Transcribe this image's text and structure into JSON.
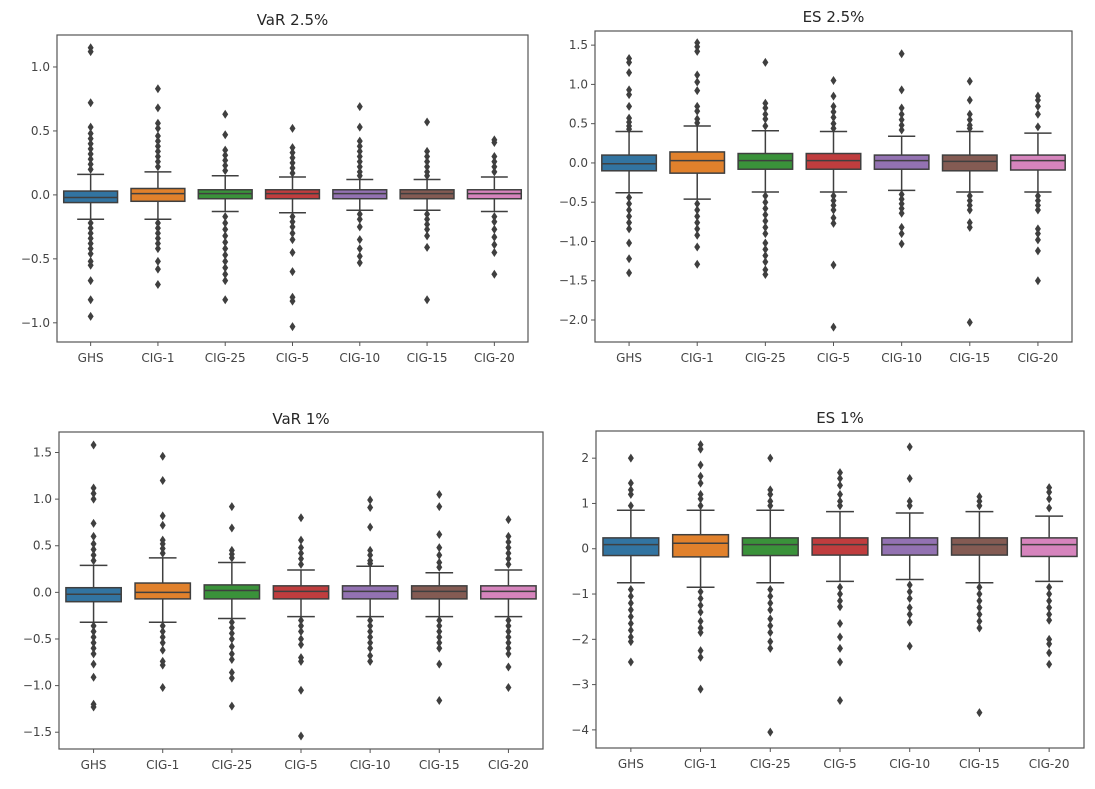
{
  "chart_data": [
    {
      "type": "box",
      "title": "VaR 2.5%",
      "xlabel": "",
      "ylabel": "",
      "categories": [
        "GHS",
        "CIG-1",
        "CIG-25",
        "CIG-5",
        "CIG-10",
        "CIG-15",
        "CIG-20"
      ],
      "colors": [
        "#3274a1",
        "#e1812c",
        "#3a923a",
        "#c03d3e",
        "#9372b2",
        "#845b53",
        "#d684bd"
      ],
      "ylim": [
        -1.15,
        1.25
      ],
      "yticks": [
        -1.0,
        -0.5,
        0.0,
        0.5,
        1.0
      ],
      "ytick_labels": [
        "−1.0",
        "−0.5",
        "0.0",
        "0.5",
        "1.0"
      ],
      "boxes": [
        {
          "q1": -0.06,
          "median": -0.02,
          "q3": 0.03,
          "whislo": -0.19,
          "whishi": 0.16,
          "fliers": [
            1.15,
            1.12,
            0.72,
            0.53,
            0.48,
            0.44,
            0.4,
            0.36,
            0.32,
            0.28,
            0.24,
            0.2,
            -0.22,
            -0.26,
            -0.3,
            -0.34,
            -0.38,
            -0.42,
            -0.46,
            -0.52,
            -0.55,
            -0.67,
            -0.82,
            -0.95
          ]
        },
        {
          "q1": -0.05,
          "median": 0.01,
          "q3": 0.05,
          "whislo": -0.19,
          "whishi": 0.18,
          "fliers": [
            0.83,
            0.68,
            0.56,
            0.52,
            0.46,
            0.42,
            0.38,
            0.34,
            0.3,
            0.26,
            0.22,
            -0.22,
            -0.26,
            -0.3,
            -0.34,
            -0.38,
            -0.42,
            -0.52,
            -0.58,
            -0.7
          ]
        },
        {
          "q1": -0.03,
          "median": 0.01,
          "q3": 0.04,
          "whislo": -0.13,
          "whishi": 0.15,
          "fliers": [
            0.63,
            0.47,
            0.35,
            0.31,
            0.27,
            0.23,
            0.19,
            -0.17,
            -0.22,
            -0.27,
            -0.32,
            -0.37,
            -0.42,
            -0.47,
            -0.52,
            -0.57,
            -0.62,
            -0.67,
            -0.82
          ]
        },
        {
          "q1": -0.03,
          "median": 0.01,
          "q3": 0.04,
          "whislo": -0.14,
          "whishi": 0.14,
          "fliers": [
            0.52,
            0.37,
            0.33,
            0.29,
            0.25,
            0.21,
            0.17,
            -0.17,
            -0.21,
            -0.25,
            -0.3,
            -0.35,
            -0.45,
            -0.6,
            -0.8,
            -0.83,
            -1.03
          ]
        },
        {
          "q1": -0.03,
          "median": 0.01,
          "q3": 0.04,
          "whislo": -0.12,
          "whishi": 0.12,
          "fliers": [
            0.69,
            0.53,
            0.42,
            0.38,
            0.34,
            0.3,
            0.26,
            0.22,
            0.18,
            0.15,
            -0.15,
            -0.19,
            -0.25,
            -0.35,
            -0.42,
            -0.48,
            -0.53
          ]
        },
        {
          "q1": -0.03,
          "median": 0.01,
          "q3": 0.04,
          "whislo": -0.12,
          "whishi": 0.12,
          "fliers": [
            0.57,
            0.34,
            0.3,
            0.26,
            0.22,
            0.18,
            0.15,
            -0.15,
            -0.19,
            -0.23,
            -0.27,
            -0.32,
            -0.41,
            -0.82
          ]
        },
        {
          "q1": -0.03,
          "median": 0.01,
          "q3": 0.04,
          "whislo": -0.13,
          "whishi": 0.14,
          "fliers": [
            0.43,
            0.41,
            0.3,
            0.26,
            0.22,
            0.18,
            -0.17,
            -0.21,
            -0.27,
            -0.33,
            -0.39,
            -0.45,
            -0.62
          ]
        }
      ]
    },
    {
      "type": "box",
      "title": "ES 2.5%",
      "xlabel": "",
      "ylabel": "",
      "categories": [
        "GHS",
        "CIG-1",
        "CIG-25",
        "CIG-5",
        "CIG-10",
        "CIG-15",
        "CIG-20"
      ],
      "colors": [
        "#3274a1",
        "#e1812c",
        "#3a923a",
        "#c03d3e",
        "#9372b2",
        "#845b53",
        "#d684bd"
      ],
      "ylim": [
        -2.28,
        1.68
      ],
      "yticks": [
        -2.0,
        -1.5,
        -1.0,
        -0.5,
        0.0,
        0.5,
        1.0,
        1.5
      ],
      "ytick_labels": [
        "−2.0",
        "−1.5",
        "−1.0",
        "−0.5",
        "0.0",
        "0.5",
        "1.0",
        "1.5"
      ],
      "boxes": [
        {
          "q1": -0.1,
          "median": -0.01,
          "q3": 0.1,
          "whislo": -0.38,
          "whishi": 0.4,
          "fliers": [
            1.33,
            1.28,
            1.15,
            0.93,
            0.87,
            0.72,
            0.57,
            0.52,
            0.47,
            0.43,
            -0.44,
            -0.52,
            -0.6,
            -0.68,
            -0.76,
            -0.84,
            -1.02,
            -1.22,
            -1.4
          ]
        },
        {
          "q1": -0.13,
          "median": 0.03,
          "q3": 0.14,
          "whislo": -0.46,
          "whishi": 0.47,
          "fliers": [
            1.53,
            1.48,
            1.42,
            1.12,
            1.03,
            0.92,
            0.72,
            0.66,
            0.56,
            0.51,
            -0.52,
            -0.6,
            -0.68,
            -0.76,
            -0.84,
            -0.92,
            -1.07,
            -1.29
          ]
        },
        {
          "q1": -0.08,
          "median": 0.03,
          "q3": 0.12,
          "whislo": -0.37,
          "whishi": 0.41,
          "fliers": [
            1.28,
            0.76,
            0.7,
            0.62,
            0.56,
            0.47,
            -0.42,
            -0.5,
            -0.58,
            -0.66,
            -0.74,
            -0.82,
            -0.9,
            -1.02,
            -1.1,
            -1.18,
            -1.26,
            -1.36,
            -1.42
          ]
        },
        {
          "q1": -0.08,
          "median": 0.03,
          "q3": 0.12,
          "whislo": -0.37,
          "whishi": 0.4,
          "fliers": [
            1.05,
            0.85,
            0.72,
            0.65,
            0.58,
            0.5,
            0.44,
            -0.42,
            -0.48,
            -0.54,
            -0.6,
            -0.7,
            -0.77,
            -1.3,
            -2.09
          ]
        },
        {
          "q1": -0.08,
          "median": 0.03,
          "q3": 0.1,
          "whislo": -0.35,
          "whishi": 0.34,
          "fliers": [
            1.39,
            0.93,
            0.7,
            0.62,
            0.55,
            0.48,
            0.42,
            -0.4,
            -0.46,
            -0.52,
            -0.58,
            -0.64,
            -0.82,
            -0.9,
            -1.03
          ]
        },
        {
          "q1": -0.1,
          "median": 0.02,
          "q3": 0.1,
          "whislo": -0.37,
          "whishi": 0.4,
          "fliers": [
            1.04,
            0.8,
            0.62,
            0.55,
            0.48,
            0.44,
            -0.42,
            -0.48,
            -0.54,
            -0.6,
            -0.76,
            -0.82,
            -2.03
          ]
        },
        {
          "q1": -0.09,
          "median": 0.03,
          "q3": 0.1,
          "whislo": -0.37,
          "whishi": 0.38,
          "fliers": [
            0.85,
            0.8,
            0.72,
            0.62,
            0.46,
            -0.42,
            -0.48,
            -0.54,
            -0.6,
            -0.84,
            -0.9,
            -0.98,
            -1.12,
            -1.5
          ]
        }
      ]
    },
    {
      "type": "box",
      "title": "VaR 1%",
      "xlabel": "",
      "ylabel": "",
      "categories": [
        "GHS",
        "CIG-1",
        "CIG-25",
        "CIG-5",
        "CIG-10",
        "CIG-15",
        "CIG-20"
      ],
      "colors": [
        "#3274a1",
        "#e1812c",
        "#3a923a",
        "#c03d3e",
        "#9372b2",
        "#845b53",
        "#d684bd"
      ],
      "ylim": [
        -1.68,
        1.72
      ],
      "yticks": [
        -1.5,
        -1.0,
        -0.5,
        0.0,
        0.5,
        1.0,
        1.5
      ],
      "ytick_labels": [
        "−1.5",
        "−1.0",
        "−0.5",
        "0.0",
        "0.5",
        "1.0",
        "1.5"
      ],
      "boxes": [
        {
          "q1": -0.1,
          "median": -0.02,
          "q3": 0.05,
          "whislo": -0.32,
          "whishi": 0.29,
          "fliers": [
            1.58,
            1.12,
            1.06,
            1.0,
            0.74,
            0.6,
            0.52,
            0.46,
            0.4,
            0.34,
            -0.36,
            -0.42,
            -0.48,
            -0.54,
            -0.6,
            -0.66,
            -0.77,
            -0.91,
            -1.2,
            -1.23
          ]
        },
        {
          "q1": -0.07,
          "median": 0.0,
          "q3": 0.1,
          "whislo": -0.32,
          "whishi": 0.37,
          "fliers": [
            1.46,
            1.2,
            0.82,
            0.72,
            0.56,
            0.52,
            0.47,
            0.42,
            -0.36,
            -0.42,
            -0.48,
            -0.54,
            -0.62,
            -0.74,
            -0.78,
            -1.02
          ]
        },
        {
          "q1": -0.07,
          "median": 0.02,
          "q3": 0.08,
          "whislo": -0.28,
          "whishi": 0.32,
          "fliers": [
            0.92,
            0.69,
            0.45,
            0.41,
            0.37,
            -0.32,
            -0.38,
            -0.44,
            -0.5,
            -0.58,
            -0.66,
            -0.72,
            -0.86,
            -0.92,
            -1.22
          ]
        },
        {
          "q1": -0.07,
          "median": 0.01,
          "q3": 0.07,
          "whislo": -0.26,
          "whishi": 0.24,
          "fliers": [
            0.8,
            0.56,
            0.48,
            0.42,
            0.36,
            0.3,
            -0.3,
            -0.36,
            -0.42,
            -0.5,
            -0.56,
            -0.7,
            -0.74,
            -1.05,
            -1.54
          ]
        },
        {
          "q1": -0.07,
          "median": 0.01,
          "q3": 0.07,
          "whislo": -0.26,
          "whishi": 0.28,
          "fliers": [
            0.99,
            0.91,
            0.7,
            0.45,
            0.4,
            0.34,
            0.31,
            -0.3,
            -0.36,
            -0.42,
            -0.48,
            -0.54,
            -0.6,
            -0.68,
            -0.74
          ]
        },
        {
          "q1": -0.07,
          "median": 0.01,
          "q3": 0.07,
          "whislo": -0.26,
          "whishi": 0.21,
          "fliers": [
            1.05,
            0.92,
            0.62,
            0.48,
            0.4,
            0.32,
            0.27,
            -0.3,
            -0.36,
            -0.42,
            -0.48,
            -0.54,
            -0.6,
            -0.77,
            -1.16
          ]
        },
        {
          "q1": -0.07,
          "median": 0.01,
          "q3": 0.07,
          "whislo": -0.26,
          "whishi": 0.24,
          "fliers": [
            0.78,
            0.6,
            0.54,
            0.48,
            0.42,
            0.36,
            0.3,
            -0.3,
            -0.36,
            -0.42,
            -0.48,
            -0.54,
            -0.6,
            -0.66,
            -0.8,
            -1.02
          ]
        }
      ]
    },
    {
      "type": "box",
      "title": "ES 1%",
      "xlabel": "",
      "ylabel": "",
      "categories": [
        "GHS",
        "CIG-1",
        "CIG-25",
        "CIG-5",
        "CIG-10",
        "CIG-15",
        "CIG-20"
      ],
      "colors": [
        "#3274a1",
        "#e1812c",
        "#3a923a",
        "#c03d3e",
        "#9372b2",
        "#845b53",
        "#d684bd"
      ],
      "ylim": [
        -4.4,
        2.6
      ],
      "yticks": [
        -4,
        -3,
        -2,
        -1,
        0,
        1,
        2
      ],
      "ytick_labels": [
        "−4",
        "−3",
        "−2",
        "−1",
        "0",
        "1",
        "2"
      ],
      "boxes": [
        {
          "q1": -0.15,
          "median": 0.09,
          "q3": 0.24,
          "whislo": -0.75,
          "whishi": 0.85,
          "fliers": [
            2.0,
            1.45,
            1.3,
            1.2,
            0.95,
            -0.9,
            -1.05,
            -1.2,
            -1.35,
            -1.5,
            -1.65,
            -1.8,
            -1.95,
            -2.05,
            -2.5
          ]
        },
        {
          "q1": -0.18,
          "median": 0.12,
          "q3": 0.31,
          "whislo": -0.85,
          "whishi": 0.85,
          "fliers": [
            2.3,
            2.2,
            1.85,
            1.6,
            1.45,
            1.2,
            1.1,
            0.95,
            -0.95,
            -1.1,
            -1.25,
            -1.4,
            -1.6,
            -1.75,
            -1.85,
            -2.25,
            -2.4,
            -3.1
          ]
        },
        {
          "q1": -0.15,
          "median": 0.09,
          "q3": 0.24,
          "whislo": -0.75,
          "whishi": 0.85,
          "fliers": [
            2.0,
            1.3,
            1.2,
            1.05,
            0.95,
            -0.9,
            -1.05,
            -1.2,
            -1.35,
            -1.55,
            -1.7,
            -1.85,
            -2.05,
            -2.2,
            -4.05
          ]
        },
        {
          "q1": -0.14,
          "median": 0.09,
          "q3": 0.24,
          "whislo": -0.72,
          "whishi": 0.82,
          "fliers": [
            1.68,
            1.55,
            1.4,
            1.2,
            1.05,
            0.95,
            -0.85,
            -1.0,
            -1.15,
            -1.28,
            -1.65,
            -1.95,
            -2.2,
            -2.5,
            -3.35
          ]
        },
        {
          "q1": -0.14,
          "median": 0.09,
          "q3": 0.24,
          "whislo": -0.68,
          "whishi": 0.79,
          "fliers": [
            2.25,
            1.55,
            1.05,
            0.95,
            -0.8,
            -0.95,
            -1.1,
            -1.3,
            -1.45,
            -1.62,
            -2.15
          ]
        },
        {
          "q1": -0.14,
          "median": 0.09,
          "q3": 0.24,
          "whislo": -0.75,
          "whishi": 0.82,
          "fliers": [
            1.15,
            1.05,
            0.95,
            -0.85,
            -1.0,
            -1.15,
            -1.3,
            -1.45,
            -1.6,
            -1.75,
            -3.62
          ]
        },
        {
          "q1": -0.17,
          "median": 0.09,
          "q3": 0.24,
          "whislo": -0.72,
          "whishi": 0.72,
          "fliers": [
            1.35,
            1.25,
            1.1,
            0.9,
            -0.85,
            -1.0,
            -1.15,
            -1.3,
            -1.45,
            -1.58,
            -2.0,
            -2.1,
            -2.3,
            -2.55
          ]
        }
      ]
    }
  ]
}
